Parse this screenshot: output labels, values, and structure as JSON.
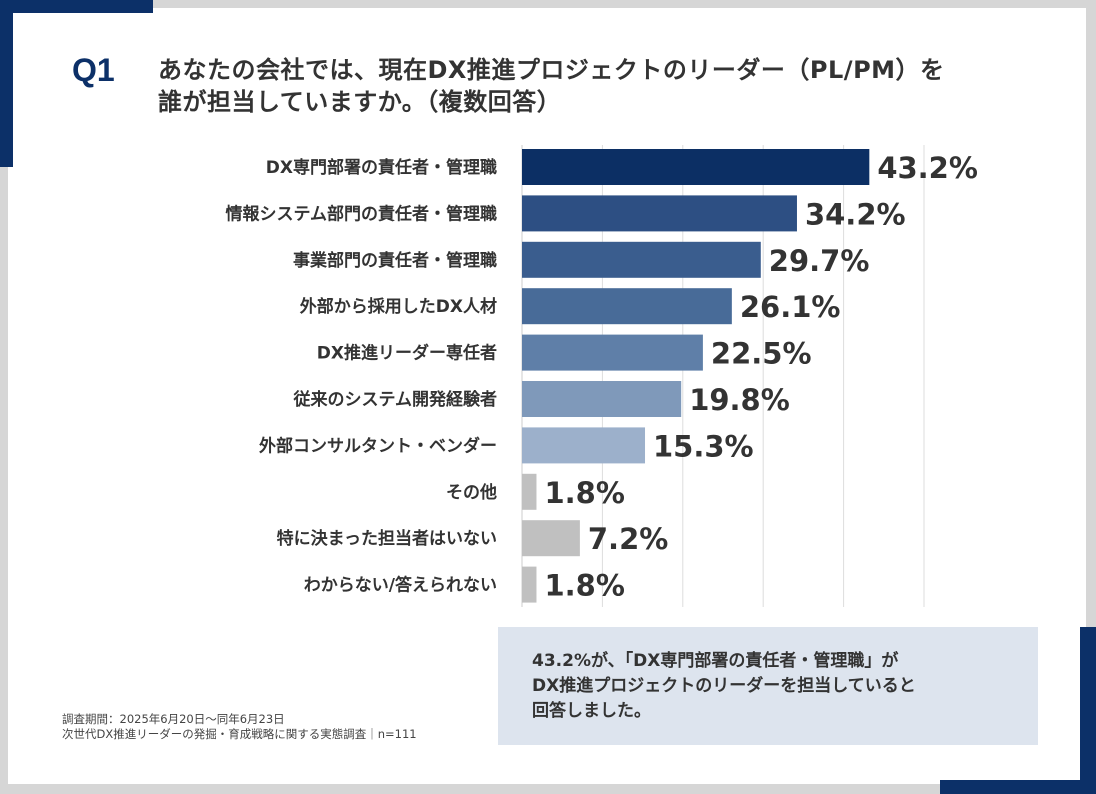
{
  "question_label": "Q1",
  "title_line1": "あなたの会社では、現在DX推進プロジェクトのリーダー（PL/PM）を",
  "title_line2": "誰が担当していますか。（複数回答）",
  "chart_data": {
    "type": "bar",
    "orientation": "horizontal",
    "categories": [
      "DX専門部署の責任者・管理職",
      "情報システム部門の責任者・管理職",
      "事業部門の責任者・管理職",
      "外部から採用したDX人材",
      "DX推進リーダー専任者",
      "従来のシステム開発経験者",
      "外部コンサルタント・ベンダー",
      "その他",
      "特に決まった担当者はいない",
      "わからない/答えられない"
    ],
    "values": [
      43.2,
      34.2,
      29.7,
      26.1,
      22.5,
      19.8,
      15.3,
      1.8,
      7.2,
      1.8
    ],
    "data_labels": [
      "43.2%",
      "34.2%",
      "29.7%",
      "26.1%",
      "22.5%",
      "19.8%",
      "15.3%",
      "1.8%",
      "7.2%",
      "1.8%"
    ],
    "colors": [
      "#0c2f64",
      "#2d4f83",
      "#3a5d8e",
      "#486b98",
      "#5f7fa8",
      "#7f99ba",
      "#9cb0cb",
      "#c0c0c0",
      "#c0c0c0",
      "#c0c0c0"
    ],
    "xlim": [
      0,
      50
    ],
    "grid": true,
    "unit": "%"
  },
  "footnote_line1": "調査期間：2025年6月20日～同年6月23日",
  "footnote_line2": "次世代DX推進リーダーの発掘・育成戦略に関する実態調査｜n=111",
  "callout_line1": "43.2%が、「DX専門部署の責任者・管理職」が",
  "callout_line2": "DX推進プロジェクトのリーダーを担当していると",
  "callout_line3": "回答しました。"
}
